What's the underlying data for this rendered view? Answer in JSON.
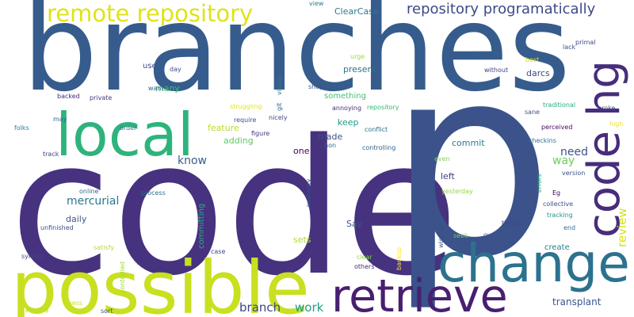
{
  "words": [
    {
      "text": "code",
      "color": "#46327e",
      "vertical": false
    },
    {
      "text": "branches",
      "color": "#365c8d",
      "vertical": false
    },
    {
      "text": "p",
      "color": "#3b528b",
      "vertical": false
    },
    {
      "text": "possible",
      "color": "#c8e020",
      "vertical": false
    },
    {
      "text": "local",
      "color": "#2eb37c",
      "vertical": false
    },
    {
      "text": "change",
      "color": "#2c728e",
      "vertical": false
    },
    {
      "text": "retrieve",
      "color": "#481f70",
      "vertical": false
    },
    {
      "text": "code hg",
      "color": "#472d7b",
      "vertical": true
    },
    {
      "text": "remote repository",
      "color": "#e0e318",
      "vertical": false
    },
    {
      "text": "repository programatically",
      "color": "#3e4989",
      "vertical": false
    },
    {
      "text": "review",
      "color": "#d5e21a",
      "vertical": true
    },
    {
      "text": "branch",
      "color": "#414487",
      "vertical": false
    },
    {
      "text": "work",
      "color": "#1f9e89",
      "vertical": false
    },
    {
      "text": "transplant",
      "color": "#39568c",
      "vertical": false
    },
    {
      "text": "ClearCase",
      "color": "#2a788e",
      "vertical": false
    },
    {
      "text": "know",
      "color": "#355f8d",
      "vertical": false
    },
    {
      "text": "need",
      "color": "#3b528b",
      "vertical": false
    },
    {
      "text": "way",
      "color": "#6ccd5a",
      "vertical": false
    },
    {
      "text": "mercurial",
      "color": "#2a768e",
      "vertical": false
    },
    {
      "text": "present",
      "color": "#2c728e",
      "vertical": false
    },
    {
      "text": "darcs",
      "color": "#3e4989",
      "vertical": false
    },
    {
      "text": "many",
      "color": "#3dbc74",
      "vertical": false
    },
    {
      "text": "use",
      "color": "#3e4c8a",
      "vertical": false
    },
    {
      "text": "keep",
      "color": "#1e9c89",
      "vertical": false
    },
    {
      "text": "feature",
      "color": "#b8de29",
      "vertical": false
    },
    {
      "text": "adding",
      "color": "#5ec962",
      "vertical": false
    },
    {
      "text": "commit",
      "color": "#277f8e",
      "vertical": false
    },
    {
      "text": "made",
      "color": "#3b528b",
      "vertical": false
    },
    {
      "text": "left",
      "color": "#424086",
      "vertical": false
    },
    {
      "text": "one",
      "color": "#440154",
      "vertical": false
    },
    {
      "text": "daily",
      "color": "#38588c",
      "vertical": false
    },
    {
      "text": "Say",
      "color": "#3a548c",
      "vertical": false
    },
    {
      "text": "sets",
      "color": "#addc30",
      "vertical": false
    },
    {
      "text": "create",
      "color": "#26828e",
      "vertical": false
    },
    {
      "text": "something",
      "color": "#45bf70",
      "vertical": false
    },
    {
      "text": "committing",
      "color": "#25ac82",
      "vertical": true
    },
    {
      "text": "view",
      "color": "#277f8e",
      "vertical": false
    },
    {
      "text": "day",
      "color": "#404688",
      "vertical": false
    },
    {
      "text": "want",
      "color": "#33638d",
      "vertical": false
    },
    {
      "text": "backed",
      "color": "#482878",
      "vertical": false
    },
    {
      "text": "private",
      "color": "#443983",
      "vertical": false
    },
    {
      "text": "may",
      "color": "#31688e",
      "vertical": false
    },
    {
      "text": "folks",
      "color": "#25858e",
      "vertical": false
    },
    {
      "text": "order",
      "color": "#2d708e",
      "vertical": false
    },
    {
      "text": "track",
      "color": "#424086",
      "vertical": false
    },
    {
      "text": "online",
      "color": "#2f6c8e",
      "vertical": false
    },
    {
      "text": "process",
      "color": "#2c728e",
      "vertical": false
    },
    {
      "text": "unfinished",
      "color": "#3d4e8a",
      "vertical": false
    },
    {
      "text": "syntax",
      "color": "#404688",
      "vertical": false
    },
    {
      "text": "satisfy",
      "color": "#b5de2b",
      "vertical": false
    },
    {
      "text": "controlled",
      "color": "#a0da39",
      "vertical": true
    },
    {
      "text": "playing",
      "color": "#b5de2b",
      "vertical": false
    },
    {
      "text": "mess",
      "color": "#cae11f",
      "vertical": false
    },
    {
      "text": "sort",
      "color": "#3b528b",
      "vertical": false
    },
    {
      "text": "case",
      "color": "#3e4a89",
      "vertical": false
    },
    {
      "text": "clear",
      "color": "#84d44b",
      "vertical": false
    },
    {
      "text": "others",
      "color": "#472a7a",
      "vertical": false
    },
    {
      "text": "backup",
      "color": "#fde725",
      "vertical": true
    },
    {
      "text": "urge",
      "color": "#9bd93c",
      "vertical": false
    },
    {
      "text": "shop",
      "color": "#3b528b",
      "vertical": false
    },
    {
      "text": "visible",
      "color": "#2a788e",
      "vertical": true
    },
    {
      "text": "git",
      "color": "#31688e",
      "vertical": true
    },
    {
      "text": "struggling",
      "color": "#e5e419",
      "vertical": false
    },
    {
      "text": "require",
      "color": "#3b528b",
      "vertical": false
    },
    {
      "text": "nicely",
      "color": "#3e4989",
      "vertical": false
    },
    {
      "text": "figure",
      "color": "#453781",
      "vertical": false
    },
    {
      "text": "annoying",
      "color": "#472c7a",
      "vertical": false
    },
    {
      "text": "repository",
      "color": "#35b779",
      "vertical": false
    },
    {
      "text": "conflict",
      "color": "#2d708e",
      "vertical": false
    },
    {
      "text": "non",
      "color": "#2e6e8e",
      "vertical": false
    },
    {
      "text": "controlling",
      "color": "#33638d",
      "vertical": false
    },
    {
      "text": "authority",
      "color": "#3b528b",
      "vertical": true
    },
    {
      "text": "even",
      "color": "#7ad151",
      "vertical": false
    },
    {
      "text": "yesterday",
      "color": "#95d840",
      "vertical": false
    },
    {
      "text": "wisdom",
      "color": "#3b528b",
      "vertical": true
    },
    {
      "text": "seek",
      "color": "#7ad151",
      "vertical": false
    },
    {
      "text": "things",
      "color": "#3e4989",
      "vertical": false
    },
    {
      "text": "overhead",
      "color": "#3b528b",
      "vertical": false
    },
    {
      "text": "without",
      "color": "#414487",
      "vertical": false
    },
    {
      "text": "best",
      "color": "#dde318",
      "vertical": false
    },
    {
      "text": "primal",
      "color": "#3f4889",
      "vertical": false
    },
    {
      "text": "lack",
      "color": "#3b528b",
      "vertical": false
    },
    {
      "text": "traditional",
      "color": "#27ad81",
      "vertical": false
    },
    {
      "text": "broke",
      "color": "#3e4a89",
      "vertical": false
    },
    {
      "text": "sane",
      "color": "#3b528b",
      "vertical": false
    },
    {
      "text": "high",
      "color": "#f1e51d",
      "vertical": false
    },
    {
      "text": "perceived",
      "color": "#46075a",
      "vertical": false
    },
    {
      "text": "checkins",
      "color": "#2c728e",
      "vertical": false
    },
    {
      "text": "version",
      "color": "#3b528b",
      "vertical": false
    },
    {
      "text": "errors",
      "color": "#2db27d",
      "vertical": true
    },
    {
      "text": "Eg",
      "color": "#440154",
      "vertical": false
    },
    {
      "text": "collective",
      "color": "#3b528b",
      "vertical": false
    },
    {
      "text": "tracking",
      "color": "#1f968b",
      "vertical": false
    },
    {
      "text": "end",
      "color": "#2d708e",
      "vertical": false
    }
  ]
}
